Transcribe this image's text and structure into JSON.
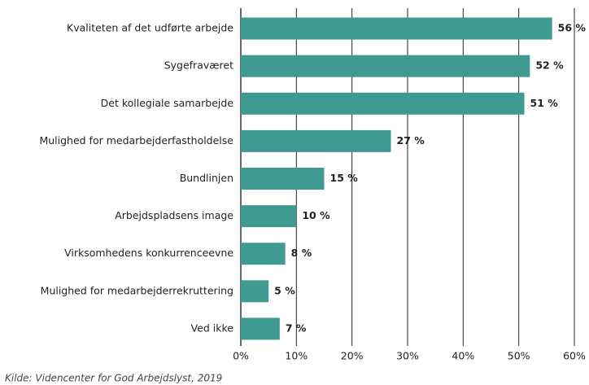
{
  "chart_data": {
    "type": "bar",
    "orientation": "horizontal",
    "categories": [
      "Kvaliteten af det udførte arbejde",
      "Sygefraværet",
      "Det kollegiale samarbejde",
      "Mulighed for medarbejderfastholdelse",
      "Bundlinjen",
      "Arbejdspladsens image",
      "Virksomhedens konkurrenceevne",
      "Mulighed for medarbejderrekruttering",
      "Ved ikke"
    ],
    "values": [
      56,
      52,
      51,
      27,
      15,
      10,
      8,
      5,
      7
    ],
    "value_labels": [
      "56 %",
      "52 %",
      "51 %",
      "27 %",
      "15 %",
      "10 %",
      "8 %",
      "5 %",
      "7 %"
    ],
    "color": "#3f9a92",
    "xlim": [
      0,
      60
    ],
    "xticks": [
      {
        "value": 0,
        "label": "0%"
      },
      {
        "value": 10,
        "label": "10%"
      },
      {
        "value": 20,
        "label": "20%"
      },
      {
        "value": 30,
        "label": "30%"
      },
      {
        "value": 40,
        "label": "40%"
      },
      {
        "value": 50,
        "label": "50%"
      },
      {
        "value": 60,
        "label": "60%"
      }
    ],
    "grid": true,
    "source": "Kilde: Videncenter for God Arbejdslyst, 2019"
  }
}
